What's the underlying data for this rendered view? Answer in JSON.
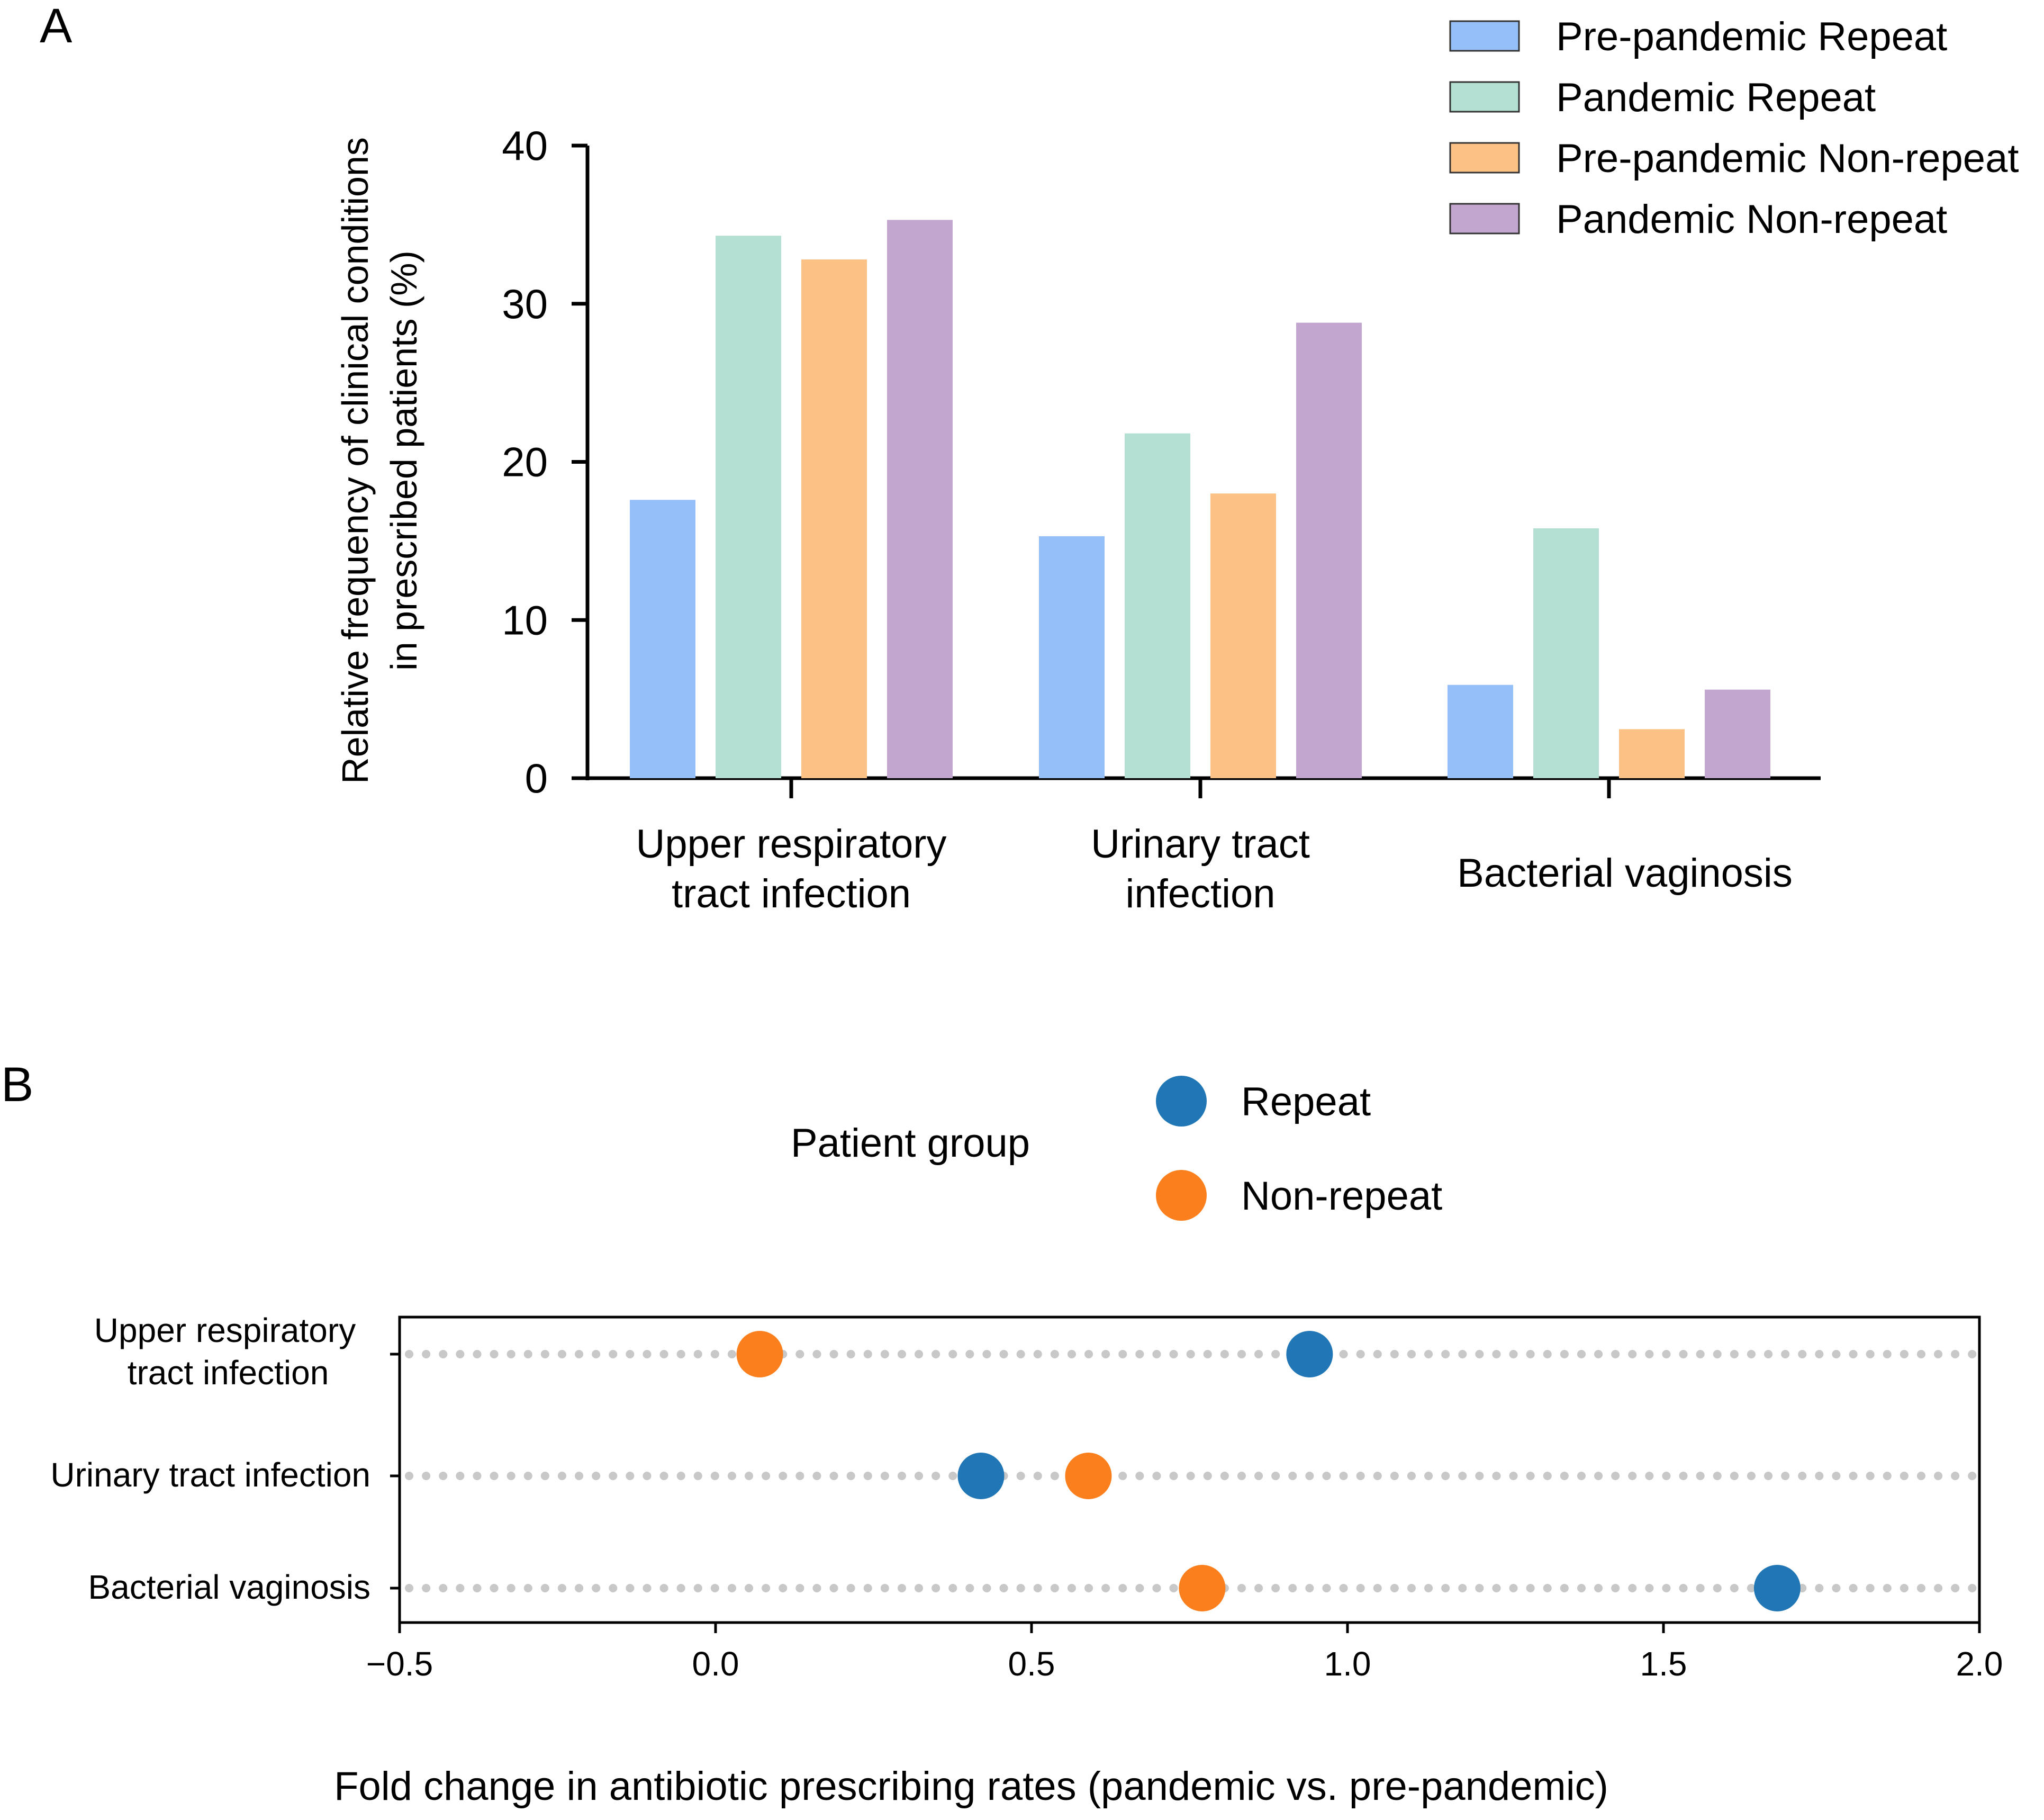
{
  "chart_data": [
    {
      "panel": "A",
      "type": "bar",
      "categories": [
        [
          "Upper respiratory",
          "tract infection"
        ],
        [
          "Urinary tract",
          "infection"
        ],
        [
          "Bacterial vaginosis"
        ]
      ],
      "series": [
        {
          "name": "Pre-pandemic Repeat",
          "color": "#94BFF8",
          "values": [
            17.6,
            15.3,
            5.9
          ]
        },
        {
          "name": "Pandemic Repeat",
          "color": "#B3E0D2",
          "values": [
            34.3,
            21.8,
            15.8
          ]
        },
        {
          "name": "Pre-pandemic Non-repeat",
          "color": "#FCC185",
          "values": [
            32.8,
            18.0,
            3.1
          ]
        },
        {
          "name": "Pandemic Non-repeat",
          "color": "#C3A6D0",
          "values": [
            35.3,
            28.8,
            5.6
          ]
        }
      ],
      "ylabel": [
        "Relative frequency of clinical conditions",
        "in prescribed patients (%)"
      ],
      "ylim": [
        0,
        40
      ],
      "yticks": [
        0,
        10,
        20,
        30,
        40
      ],
      "legend_position": "top-right"
    },
    {
      "panel": "B",
      "type": "scatter",
      "categories": [
        [
          "Upper respiratory",
          "tract infection"
        ],
        [
          "Urinary tract infection"
        ],
        [
          "Bacterial vaginosis"
        ]
      ],
      "series": [
        {
          "name": "Repeat",
          "color": "#2177B5",
          "values": [
            0.94,
            0.42,
            1.68
          ]
        },
        {
          "name": "Non-repeat",
          "color": "#FC7F1E",
          "values": [
            0.07,
            0.59,
            0.77
          ]
        }
      ],
      "legend_title": "Patient group",
      "xlabel": "Fold change in antibiotic prescribing rates (pandemic vs. pre-pandemic)",
      "xlim": [
        -0.5,
        2.0
      ],
      "xticks": [
        -0.5,
        0.0,
        0.5,
        1.0,
        1.5,
        2.0
      ],
      "xtick_labels": [
        "−0.5",
        "0.0",
        "0.5",
        "1.0",
        "1.5",
        "2.0"
      ],
      "gridline_color": "#C8C8C8"
    }
  ],
  "panel_labels": {
    "a": "A",
    "b": "B"
  }
}
